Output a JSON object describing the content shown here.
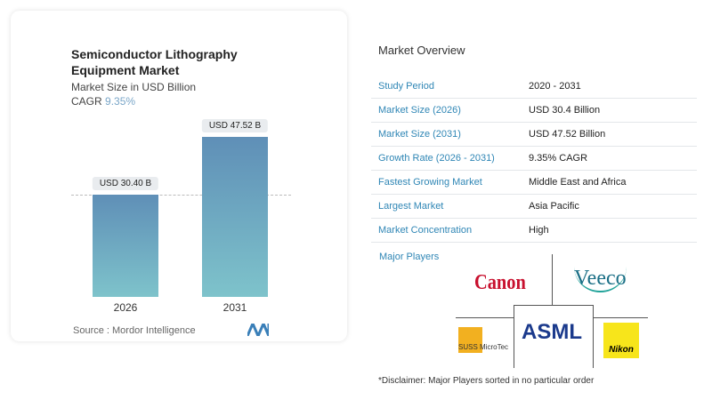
{
  "chart_card": {
    "title_line1": "Semiconductor Lithography",
    "title_line2": "Equipment Market",
    "subtitle": "Market Size in USD Billion",
    "cagr_label": "CAGR",
    "cagr_value": "9.35%",
    "source": "Source :  Mordor Intelligence"
  },
  "chart_data": {
    "type": "bar",
    "categories": [
      "2026",
      "2031"
    ],
    "values": [
      30.4,
      47.52
    ],
    "data_labels": [
      "USD 30.40 B",
      "USD 47.52 B"
    ],
    "ylabel": "",
    "xlabel": "",
    "bar_gradient": [
      "#5f8fb7",
      "#7ec3cb"
    ]
  },
  "overview": {
    "title": "Market Overview",
    "rows": [
      {
        "label": "Study Period",
        "value": "2020 - 2031"
      },
      {
        "label": "Market Size (2026)",
        "value": "USD 30.4 Billion"
      },
      {
        "label": "Market Size (2031)",
        "value": "USD 47.52 Billion"
      },
      {
        "label": "Growth Rate (2026 - 2031)",
        "value": "9.35% CAGR"
      },
      {
        "label": "Fastest Growing Market",
        "value": "Middle East and Africa"
      },
      {
        "label": "Largest Market",
        "value": "Asia Pacific"
      },
      {
        "label": "Market Concentration",
        "value": "High"
      }
    ],
    "major_players_title": "Major Players",
    "players": [
      "Canon",
      "Veeco",
      "SUSS MicroTec",
      "ASML",
      "Nikon"
    ],
    "disclaimer": "*Disclaimer: Major Players sorted in no particular order"
  },
  "colors": {
    "accent": "#2f86b5"
  }
}
